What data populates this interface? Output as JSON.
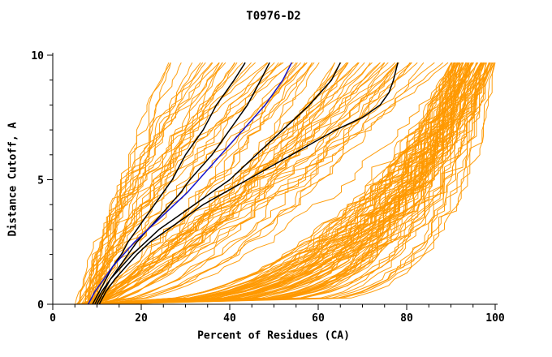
{
  "chart_data": {
    "type": "line",
    "title": "T0976-D2",
    "xlabel": "Percent of Residues (CA)",
    "ylabel": "Distance Cutoff, A",
    "xlim": [
      0,
      100
    ],
    "ylim": [
      0,
      10
    ],
    "xticks_major": [
      0,
      20,
      40,
      60,
      80,
      100
    ],
    "xticks_minor_step": 5,
    "yticks_major": [
      0,
      5,
      10
    ],
    "yticks_minor_step": 1,
    "grid": false,
    "legend": "none",
    "curve_y_max": 9.7,
    "colors": {
      "background": "#ffffff",
      "axis": "#000000",
      "orange": "#ff9900",
      "black": "#000000",
      "blue": "#1414cc"
    },
    "highlight_series": [
      {
        "name": "black-curve-1",
        "color": "black",
        "points": [
          [
            9,
            0
          ],
          [
            10.5,
            0.5
          ],
          [
            12,
            1
          ],
          [
            13.5,
            1.5
          ],
          [
            15.5,
            2
          ],
          [
            17,
            2.5
          ],
          [
            19,
            3
          ],
          [
            21,
            3.5
          ],
          [
            23,
            4
          ],
          [
            25,
            4.5
          ],
          [
            27,
            5
          ],
          [
            28.5,
            5.5
          ],
          [
            30,
            6
          ],
          [
            32,
            6.5
          ],
          [
            34,
            7
          ],
          [
            35.5,
            7.5
          ],
          [
            37,
            8
          ],
          [
            39,
            8.5
          ],
          [
            41,
            9
          ],
          [
            43.5,
            9.7
          ]
        ]
      },
      {
        "name": "black-curve-2",
        "color": "black",
        "points": [
          [
            9.5,
            0
          ],
          [
            11,
            0.5
          ],
          [
            13,
            1
          ],
          [
            15,
            1.5
          ],
          [
            17,
            2
          ],
          [
            19,
            2.5
          ],
          [
            21.5,
            3
          ],
          [
            24,
            3.5
          ],
          [
            26.5,
            4
          ],
          [
            29,
            4.5
          ],
          [
            31,
            5
          ],
          [
            33.5,
            5.5
          ],
          [
            36,
            6
          ],
          [
            38,
            6.5
          ],
          [
            40,
            7
          ],
          [
            42,
            7.5
          ],
          [
            44,
            8
          ],
          [
            45.5,
            8.5
          ],
          [
            47,
            9
          ],
          [
            49,
            9.7
          ]
        ]
      },
      {
        "name": "black-curve-3",
        "color": "black",
        "points": [
          [
            10,
            0
          ],
          [
            11.5,
            0.5
          ],
          [
            13,
            1
          ],
          [
            15.5,
            1.5
          ],
          [
            18,
            2
          ],
          [
            21,
            2.5
          ],
          [
            24,
            3
          ],
          [
            28,
            3.5
          ],
          [
            32,
            4
          ],
          [
            36,
            4.5
          ],
          [
            40,
            5
          ],
          [
            43,
            5.5
          ],
          [
            46,
            6
          ],
          [
            49,
            6.5
          ],
          [
            52,
            7
          ],
          [
            55,
            7.5
          ],
          [
            58,
            8
          ],
          [
            60.5,
            8.5
          ],
          [
            63,
            9
          ],
          [
            65,
            9.7
          ]
        ]
      },
      {
        "name": "black-curve-4",
        "color": "black",
        "points": [
          [
            10.5,
            0
          ],
          [
            12,
            0.5
          ],
          [
            14,
            1
          ],
          [
            16.5,
            1.5
          ],
          [
            19,
            2
          ],
          [
            22,
            2.5
          ],
          [
            26,
            3
          ],
          [
            30,
            3.5
          ],
          [
            34,
            4
          ],
          [
            39,
            4.5
          ],
          [
            44,
            5
          ],
          [
            49,
            5.5
          ],
          [
            54,
            6
          ],
          [
            59,
            6.5
          ],
          [
            64,
            7
          ],
          [
            70,
            7.5
          ],
          [
            74,
            8
          ],
          [
            76,
            8.5
          ],
          [
            77,
            9
          ],
          [
            78,
            9.7
          ]
        ]
      },
      {
        "name": "blue-curve-1",
        "color": "blue",
        "points": [
          [
            8,
            0
          ],
          [
            9.5,
            0.5
          ],
          [
            11.5,
            1
          ],
          [
            13.5,
            1.5
          ],
          [
            16,
            2
          ],
          [
            18.5,
            2.5
          ],
          [
            21.5,
            3
          ],
          [
            24.5,
            3.5
          ],
          [
            27.5,
            4
          ],
          [
            30.5,
            4.5
          ],
          [
            33,
            5
          ],
          [
            35.5,
            5.5
          ],
          [
            38,
            6
          ],
          [
            40.5,
            6.5
          ],
          [
            43,
            7
          ],
          [
            45.5,
            7.5
          ],
          [
            48,
            8
          ],
          [
            50,
            8.5
          ],
          [
            52,
            9
          ],
          [
            54,
            9.7
          ]
        ]
      }
    ],
    "background_series_groups": [
      {
        "name": "orange-left-fan",
        "color": "orange",
        "count": 32,
        "seed": 11,
        "x_start": [
          5,
          11
        ],
        "x_end": [
          26,
          58
        ],
        "shape_exp": [
          1.0,
          1.9
        ],
        "noise": 2.0
      },
      {
        "name": "orange-middle-fan",
        "color": "orange",
        "count": 40,
        "seed": 22,
        "x_start": [
          6,
          12
        ],
        "x_end": [
          55,
          92
        ],
        "shape_exp": [
          0.5,
          0.95
        ],
        "noise": 2.2
      },
      {
        "name": "orange-right-bundle",
        "color": "orange",
        "count": 85,
        "seed": 33,
        "x_start": [
          7,
          14
        ],
        "x_end": [
          90,
          100
        ],
        "shape_exp": [
          0.12,
          0.42
        ],
        "noise": 2.5
      }
    ]
  }
}
